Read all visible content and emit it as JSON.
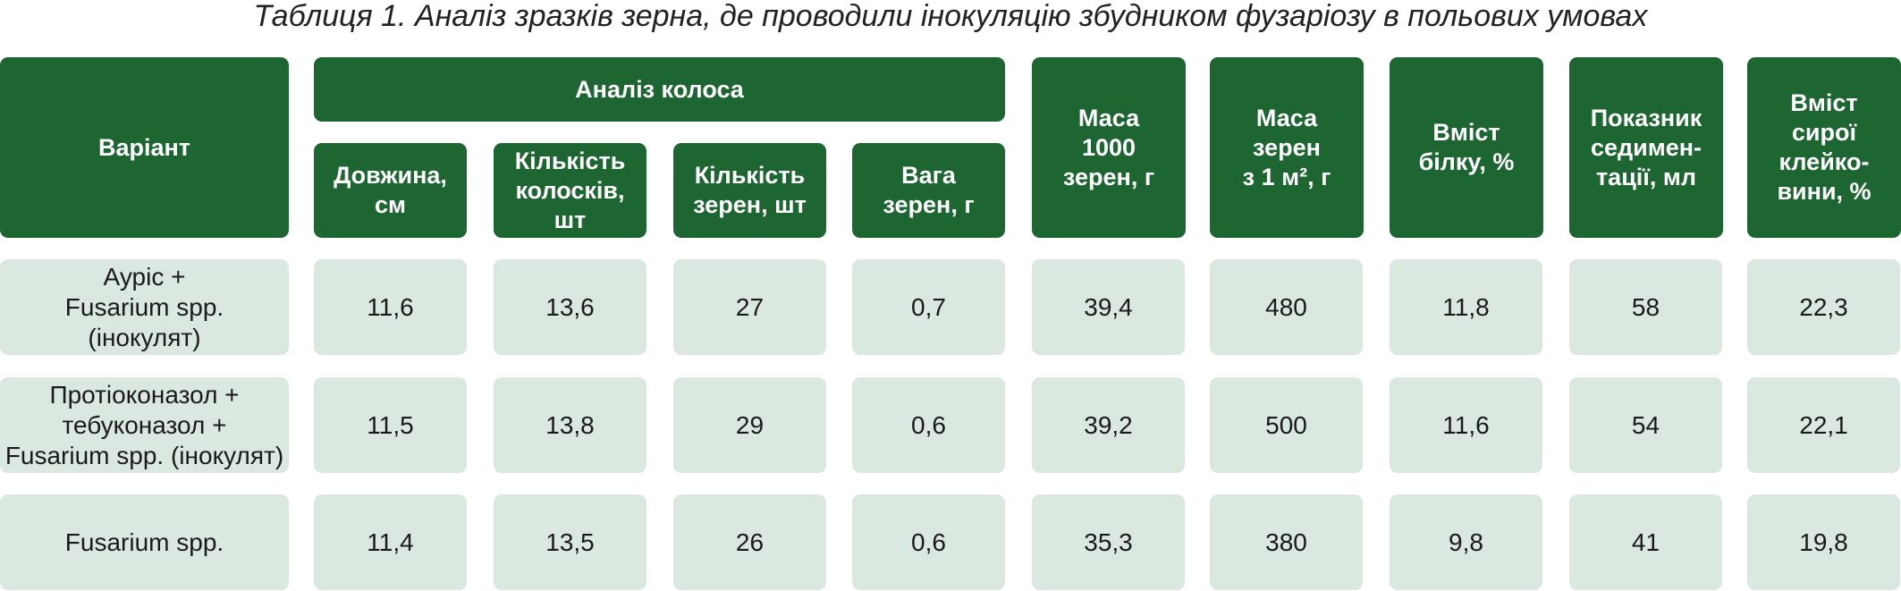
{
  "title": "Таблиця 1. Аналіз зразків зерна, де проводили інокуляцію збудником фузаріозу в польових умовах",
  "table": {
    "header": {
      "variant": "Варіант",
      "group": "Аналіз колоса",
      "group_columns": [
        "Довжина,\nсм",
        "Кількість\nколосків,\nшт",
        "Кількість\nзерен, шт",
        "Вага\nзерен, г"
      ],
      "columns": [
        "Маса\n1000\nзерен, г",
        "Маса\nзерен\nз 1 м², г",
        "Вміст\nбілку, %",
        "Показник\nседимен-\nтації, мл",
        "Вміст\nсирої\nклейко-\nвини, %"
      ]
    },
    "rows": [
      [
        "Аурiс +\nFusarium spp.\n(інокулят)",
        "11,6",
        "13,6",
        "27",
        "0,7",
        "39,4",
        "480",
        "11,8",
        "58",
        "22,3"
      ],
      [
        "Протіоконазол +\nтебуконазол +\nFusarium spp. (інокулят)",
        "11,5",
        "13,8",
        "29",
        "0,6",
        "39,2",
        "500",
        "11,6",
        "54",
        "22,1"
      ],
      [
        "Fusarium spp.",
        "11,4",
        "13,5",
        "26",
        "0,6",
        "35,3",
        "380",
        "9,8",
        "41",
        "19,8"
      ]
    ]
  }
}
